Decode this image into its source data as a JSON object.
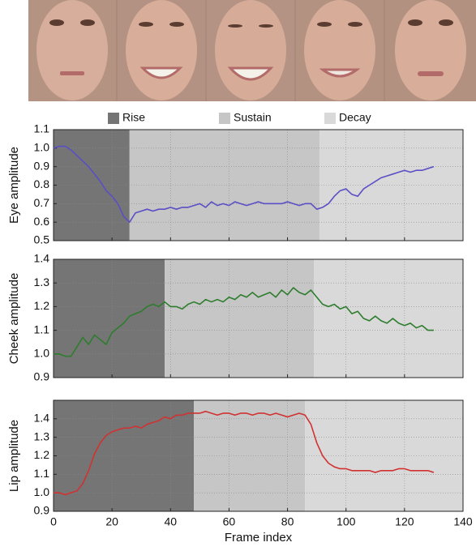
{
  "phases": [
    {
      "name": "Rise",
      "color": "#757575"
    },
    {
      "name": "Sustain",
      "color": "#c6c6c6"
    },
    {
      "name": "Decay",
      "color": "#d9d9d9"
    }
  ],
  "chart_data": [
    {
      "type": "line",
      "ylabel": "Eye amplitude",
      "phase_edges": [
        26,
        91
      ],
      "xlim": [
        0,
        140
      ],
      "xticks": [
        0,
        20,
        40,
        60,
        80,
        100,
        120,
        140
      ],
      "show_xtick_labels": false,
      "ylim": [
        0.5,
        1.1
      ],
      "yticks": [
        0.5,
        0.6,
        0.7,
        0.8,
        0.9,
        {
          "value": 1,
          "label": "1.0"
        },
        1.1
      ],
      "grid": true,
      "x": [
        0,
        2,
        4,
        6,
        8,
        10,
        12,
        14,
        16,
        18,
        20,
        22,
        24,
        26,
        28,
        30,
        32,
        34,
        36,
        38,
        40,
        42,
        44,
        46,
        48,
        50,
        52,
        54,
        56,
        58,
        60,
        62,
        64,
        66,
        68,
        70,
        72,
        74,
        76,
        78,
        80,
        82,
        84,
        86,
        88,
        90,
        92,
        94,
        96,
        98,
        100,
        102,
        104,
        106,
        108,
        110,
        112,
        114,
        116,
        118,
        120,
        122,
        124,
        126,
        128,
        130
      ],
      "series": [
        {
          "color": "#5a4fc4",
          "values": [
            1.0,
            1.01,
            1.01,
            0.99,
            0.96,
            0.93,
            0.9,
            0.86,
            0.82,
            0.77,
            0.74,
            0.7,
            0.63,
            0.6,
            0.65,
            0.66,
            0.67,
            0.66,
            0.67,
            0.67,
            0.68,
            0.67,
            0.68,
            0.68,
            0.69,
            0.7,
            0.68,
            0.71,
            0.69,
            0.7,
            0.69,
            0.71,
            0.7,
            0.69,
            0.7,
            0.71,
            0.7,
            0.7,
            0.7,
            0.7,
            0.71,
            0.7,
            0.69,
            0.7,
            0.7,
            0.67,
            0.68,
            0.7,
            0.74,
            0.77,
            0.78,
            0.75,
            0.74,
            0.78,
            0.8,
            0.82,
            0.84,
            0.85,
            0.86,
            0.87,
            0.88,
            0.87,
            0.88,
            0.88,
            0.89,
            0.9
          ]
        }
      ]
    },
    {
      "type": "line",
      "ylabel": "Cheek amplitude",
      "phase_edges": [
        38,
        89
      ],
      "xlim": [
        0,
        140
      ],
      "xticks": [
        0,
        20,
        40,
        60,
        80,
        100,
        120,
        140
      ],
      "show_xtick_labels": false,
      "ylim": [
        0.9,
        1.4
      ],
      "yticks": [
        0.9,
        {
          "value": 1,
          "label": "1.0"
        },
        1.1,
        1.2,
        1.3,
        1.4
      ],
      "grid": true,
      "x": [
        0,
        2,
        4,
        6,
        8,
        10,
        12,
        14,
        16,
        18,
        20,
        22,
        24,
        26,
        28,
        30,
        32,
        34,
        36,
        38,
        40,
        42,
        44,
        46,
        48,
        50,
        52,
        54,
        56,
        58,
        60,
        62,
        64,
        66,
        68,
        70,
        72,
        74,
        76,
        78,
        80,
        82,
        84,
        86,
        88,
        90,
        92,
        94,
        96,
        98,
        100,
        102,
        104,
        106,
        108,
        110,
        112,
        114,
        116,
        118,
        120,
        122,
        124,
        126,
        128,
        130
      ],
      "series": [
        {
          "color": "#2e7d2e",
          "values": [
            1.0,
            1.0,
            0.99,
            0.99,
            1.03,
            1.07,
            1.04,
            1.08,
            1.06,
            1.04,
            1.09,
            1.11,
            1.13,
            1.16,
            1.17,
            1.18,
            1.2,
            1.21,
            1.2,
            1.22,
            1.2,
            1.2,
            1.19,
            1.21,
            1.22,
            1.21,
            1.23,
            1.22,
            1.23,
            1.22,
            1.24,
            1.23,
            1.25,
            1.24,
            1.26,
            1.24,
            1.25,
            1.26,
            1.24,
            1.27,
            1.25,
            1.28,
            1.26,
            1.25,
            1.27,
            1.24,
            1.21,
            1.2,
            1.21,
            1.19,
            1.2,
            1.17,
            1.18,
            1.15,
            1.14,
            1.16,
            1.14,
            1.13,
            1.15,
            1.13,
            1.12,
            1.13,
            1.11,
            1.12,
            1.1,
            1.1
          ]
        }
      ]
    },
    {
      "type": "line",
      "ylabel": "Lip amplitude",
      "xlabel": "Frame index",
      "phase_edges": [
        48,
        86
      ],
      "xlim": [
        0,
        140
      ],
      "xticks": [
        0,
        20,
        40,
        60,
        80,
        100,
        120,
        140
      ],
      "show_xtick_labels": true,
      "ylim": [
        0.9,
        1.5
      ],
      "yticks": [
        0.9,
        {
          "value": 1,
          "label": "1.0"
        },
        1.1,
        1.2,
        1.3,
        1.4
      ],
      "grid": true,
      "x": [
        0,
        2,
        4,
        6,
        8,
        10,
        12,
        14,
        16,
        18,
        20,
        22,
        24,
        26,
        28,
        30,
        32,
        34,
        36,
        38,
        40,
        42,
        44,
        46,
        48,
        50,
        52,
        54,
        56,
        58,
        60,
        62,
        64,
        66,
        68,
        70,
        72,
        74,
        76,
        78,
        80,
        82,
        84,
        86,
        88,
        90,
        92,
        94,
        96,
        98,
        100,
        102,
        104,
        106,
        108,
        110,
        112,
        114,
        116,
        118,
        120,
        122,
        124,
        126,
        128,
        130
      ],
      "series": [
        {
          "color": "#d03232",
          "values": [
            1.0,
            1.0,
            0.99,
            1.0,
            1.01,
            1.05,
            1.12,
            1.21,
            1.27,
            1.31,
            1.33,
            1.34,
            1.35,
            1.35,
            1.36,
            1.35,
            1.37,
            1.38,
            1.39,
            1.41,
            1.4,
            1.42,
            1.42,
            1.43,
            1.43,
            1.43,
            1.44,
            1.43,
            1.42,
            1.43,
            1.43,
            1.42,
            1.43,
            1.43,
            1.42,
            1.43,
            1.43,
            1.42,
            1.43,
            1.42,
            1.41,
            1.42,
            1.43,
            1.42,
            1.37,
            1.27,
            1.2,
            1.16,
            1.14,
            1.13,
            1.13,
            1.12,
            1.12,
            1.12,
            1.12,
            1.11,
            1.12,
            1.12,
            1.12,
            1.13,
            1.13,
            1.12,
            1.12,
            1.12,
            1.12,
            1.11
          ]
        }
      ]
    }
  ]
}
